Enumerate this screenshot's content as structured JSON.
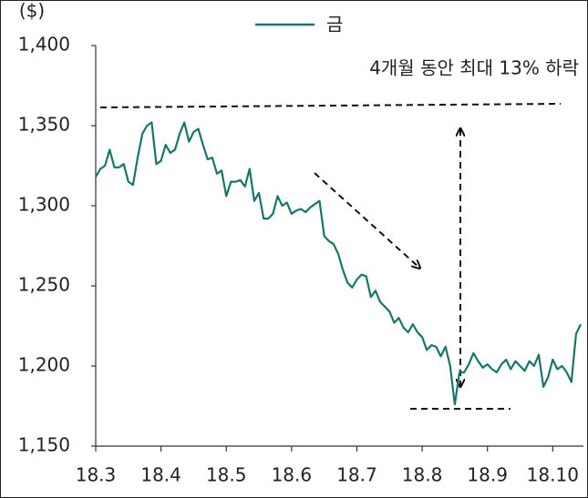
{
  "chart_data": {
    "type": "line",
    "y_unit": "($)",
    "annotation": "4개월 동안 최대 13% 하락",
    "categories": [
      "18.3",
      null,
      null,
      null,
      null,
      null,
      null,
      null,
      null,
      null,
      null,
      null,
      null,
      null,
      "18.4",
      null,
      null,
      null,
      null,
      null,
      null,
      null,
      null,
      null,
      null,
      null,
      null,
      null,
      "18.5",
      null,
      null,
      null,
      null,
      null,
      null,
      null,
      null,
      null,
      null,
      null,
      null,
      null,
      "18.6",
      null,
      null,
      null,
      null,
      null,
      null,
      null,
      null,
      null,
      null,
      null,
      null,
      null,
      "18.7",
      null,
      null,
      null,
      null,
      null,
      null,
      null,
      null,
      null,
      null,
      null,
      null,
      null,
      "18.8",
      null,
      null,
      null,
      null,
      null,
      null,
      null,
      null,
      null,
      null,
      null,
      null,
      null,
      "18.9",
      null,
      null,
      null,
      null,
      null,
      null,
      null,
      null,
      null,
      null,
      null,
      null,
      null,
      "18.10",
      null,
      null,
      null,
      null,
      null,
      null
    ],
    "series": [
      {
        "name": "금",
        "color": "#17766b",
        "values": [
          1318,
          1323,
          1325,
          1335,
          1324,
          1324,
          1326,
          1315,
          1313,
          1330,
          1345,
          1350,
          1352,
          1326,
          1328,
          1338,
          1333,
          1335,
          1345,
          1352,
          1340,
          1346,
          1348,
          1338,
          1329,
          1330,
          1320,
          1322,
          1306,
          1315,
          1315,
          1316,
          1312,
          1323,
          1303,
          1308,
          1292,
          1292,
          1295,
          1306,
          1300,
          1302,
          1295,
          1297,
          1298,
          1296,
          1299,
          1301,
          1303,
          1281,
          1278,
          1276,
          1270,
          1260,
          1252,
          1249,
          1254,
          1257,
          1256,
          1243,
          1247,
          1240,
          1237,
          1234,
          1227,
          1230,
          1224,
          1221,
          1226,
          1221,
          1218,
          1210,
          1213,
          1212,
          1206,
          1212,
          1200,
          1176,
          1196,
          1196,
          1201,
          1208,
          1203,
          1199,
          1201,
          1198,
          1196,
          1201,
          1204,
          1198,
          1203,
          1200,
          1197,
          1203,
          1200,
          1207,
          1187,
          1193,
          1204,
          1198,
          1200,
          1196,
          1190,
          1220,
          1226
        ]
      }
    ],
    "ylim": [
      1150,
      1400
    ],
    "yticks": [
      {
        "value": 1150,
        "label": "1,150"
      },
      {
        "value": 1200,
        "label": "1,200"
      },
      {
        "value": 1250,
        "label": "1,250"
      },
      {
        "value": 1300,
        "label": "1,300"
      },
      {
        "value": 1350,
        "label": "1,350"
      },
      {
        "value": 1400,
        "label": "1,400"
      }
    ],
    "grid": false
  }
}
